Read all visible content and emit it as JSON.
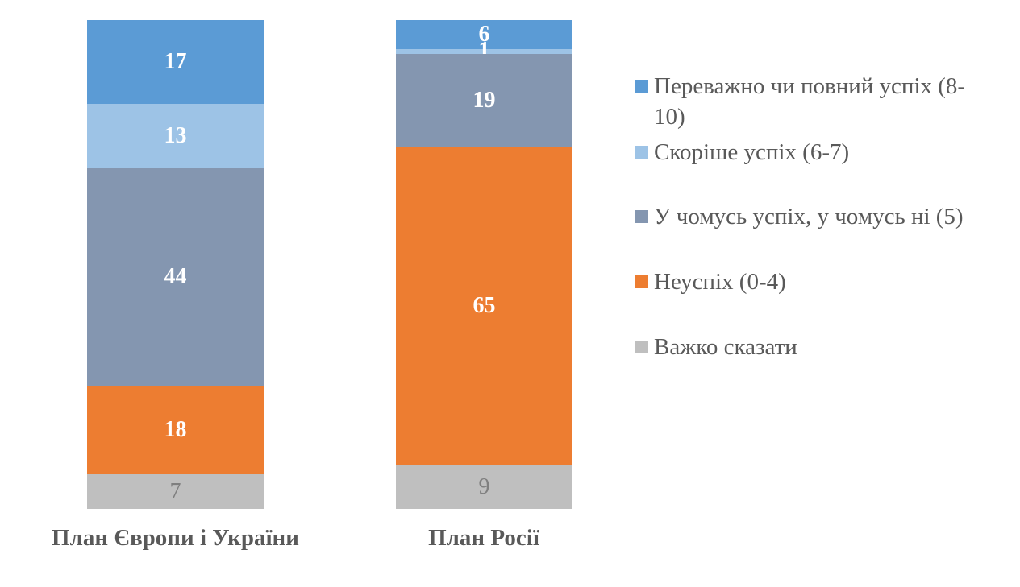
{
  "chart_data": {
    "type": "bar",
    "stacked": true,
    "orientation": "vertical",
    "title": "",
    "xlabel": "",
    "ylabel": "",
    "grid": false,
    "legend_position": "right",
    "categories": [
      "План Європи і України",
      "План Росії"
    ],
    "series": [
      {
        "name": "Переважно чи повний успіх (8-10)",
        "color": "#5b9bd5",
        "values": [
          17,
          6
        ]
      },
      {
        "name": "Скоріше успіх (6-7)",
        "color": "#9dc3e6",
        "values": [
          13,
          1
        ]
      },
      {
        "name": "У чомусь успіх, у чомусь ні (5)",
        "color": "#8496b0",
        "values": [
          44,
          19
        ]
      },
      {
        "name": "Неуспіх (0-4)",
        "color": "#ed7d31",
        "values": [
          18,
          65
        ]
      },
      {
        "name": "Важко сказати",
        "color": "#bfbfbf",
        "values": [
          7,
          9
        ]
      }
    ]
  },
  "bars": [
    {
      "label": "План Європи і України",
      "segments": [
        {
          "value": "17",
          "pct": 17,
          "color": "#5b9bd5"
        },
        {
          "value": "13",
          "pct": 13,
          "color": "#9dc3e6"
        },
        {
          "value": "44",
          "pct": 44,
          "color": "#8496b0"
        },
        {
          "value": "18",
          "pct": 18,
          "color": "#ed7d31"
        },
        {
          "value": "7",
          "pct": 7,
          "color": "#bfbfbf"
        }
      ]
    },
    {
      "label": "План Росії",
      "segments": [
        {
          "value": "6",
          "pct": 6,
          "color": "#5b9bd5"
        },
        {
          "value": "1",
          "pct": 1,
          "color": "#9dc3e6"
        },
        {
          "value": "19",
          "pct": 19,
          "color": "#8496b0"
        },
        {
          "value": "65",
          "pct": 65,
          "color": "#ed7d31"
        },
        {
          "value": "9",
          "pct": 9,
          "color": "#bfbfbf"
        }
      ]
    }
  ],
  "legend": [
    {
      "label": "Переважно чи повний успіх (8-10)",
      "color": "#5b9bd5"
    },
    {
      "label": "Скоріше успіх (6-7)",
      "color": "#9dc3e6"
    },
    {
      "label": "У чомусь успіх, у чомусь ні (5)",
      "color": "#8496b0"
    },
    {
      "label": "Неуспіх (0-4)",
      "color": "#ed7d31"
    },
    {
      "label": "Важко сказати",
      "color": "#bfbfbf"
    }
  ]
}
